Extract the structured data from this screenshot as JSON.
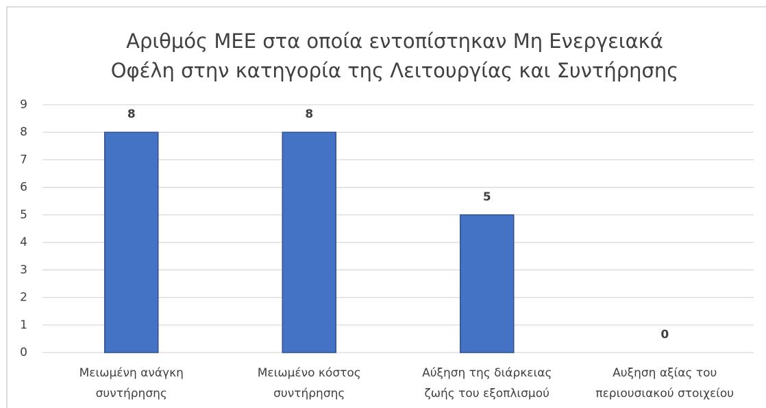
{
  "chart_data": {
    "type": "bar",
    "title": [
      "Αριθμός ΜΕΕ στα οποία εντοπίστηκαν Μη Ενεργειακά",
      "Οφέλη στην κατηγορία της Λειτουργίας και Συντήρησης"
    ],
    "categories": [
      [
        "Μειωμένη ανάγκη",
        "συντήρησης"
      ],
      [
        "Μειωμένο κόστος",
        "συντήρησης"
      ],
      [
        "Αύξηση της διάρκειας",
        "ζωής του εξοπλισμού"
      ],
      [
        "Αυξηση αξίας του",
        "περιουσιακού στοιχείου"
      ]
    ],
    "values": [
      8,
      8,
      5,
      0
    ],
    "color": "#4472c4",
    "ylim": [
      0,
      9
    ],
    "yticks": [
      0,
      1,
      2,
      3,
      4,
      5,
      6,
      7,
      8,
      9
    ],
    "grid": true
  }
}
